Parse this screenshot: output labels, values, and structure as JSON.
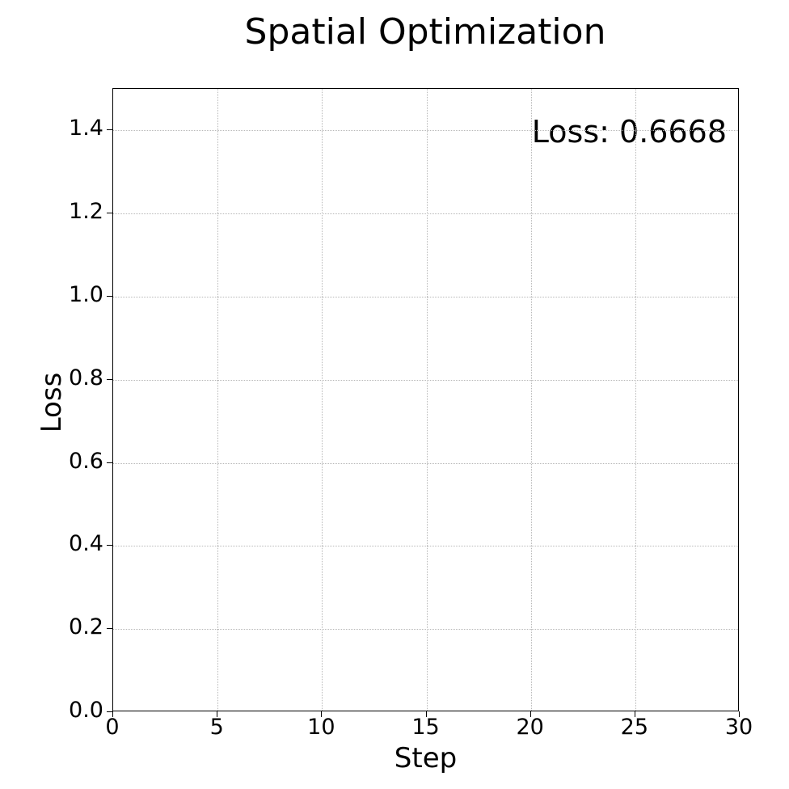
{
  "chart_data": {
    "type": "line",
    "title": "Spatial Optimization",
    "xlabel": "Step",
    "ylabel": "Loss",
    "xlim": [
      0,
      30
    ],
    "ylim": [
      0,
      1.5
    ],
    "x_ticks": [
      "0",
      "5",
      "10",
      "15",
      "20",
      "25",
      "30"
    ],
    "y_ticks": [
      "0.0",
      "0.2",
      "0.4",
      "0.6",
      "0.8",
      "1.0",
      "1.2",
      "1.4"
    ],
    "grid": true,
    "series": [],
    "annotation": "Loss: 0.6668"
  },
  "colors": {
    "grid": "#b8b8b8",
    "axes": "#000000",
    "background": "#ffffff"
  }
}
